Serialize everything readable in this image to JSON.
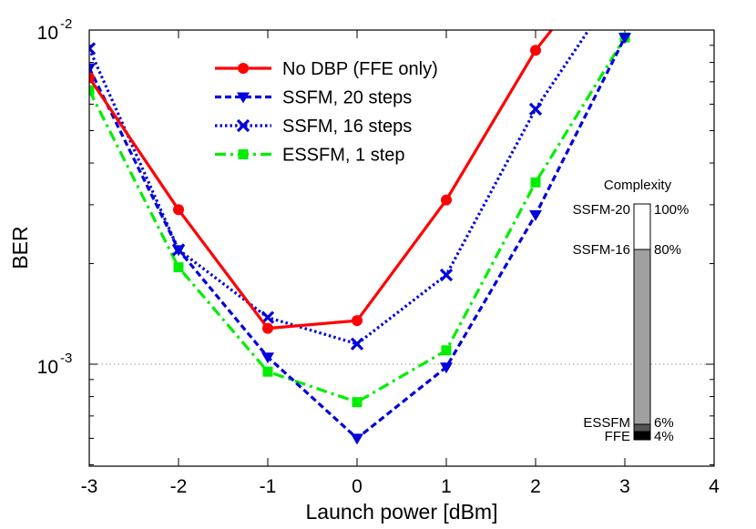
{
  "chart_data": {
    "type": "line",
    "xlabel": "Launch power [dBm]",
    "ylabel": "BER",
    "xlim": [
      -3,
      4
    ],
    "ylim": [
      0.0005,
      0.01
    ],
    "yscale": "log",
    "x_ticks": [
      "-3",
      "-2",
      "-1",
      "0",
      "1",
      "2",
      "3",
      "4"
    ],
    "y_ticks": [
      {
        "value": 0.01,
        "base": "10",
        "exp": "-2"
      },
      {
        "value": 0.001,
        "base": "10",
        "exp": "-3"
      }
    ],
    "reference_line": {
      "y": 0.001,
      "style": "dotted",
      "color": "#999999"
    },
    "legend_position": "top-center",
    "series": [
      {
        "name": "No DBP (FFE only)",
        "color": "#ff0000",
        "marker": "circle",
        "dash": "solid",
        "x": [
          -3,
          -2,
          -1,
          0,
          1,
          2,
          3
        ],
        "y": [
          0.0072,
          0.0029,
          0.00128,
          0.00135,
          0.0031,
          0.0087,
          0.019
        ]
      },
      {
        "name": "SSFM, 20 steps",
        "color": "#0000dd",
        "marker": "triangle-down",
        "dash": "dashed",
        "x": [
          -3,
          -2,
          -1,
          0,
          1,
          2,
          3
        ],
        "y": [
          0.0077,
          0.0022,
          0.00105,
          0.0006,
          0.00098,
          0.0028,
          0.0095
        ]
      },
      {
        "name": "SSFM, 16 steps",
        "color": "#0000dd",
        "marker": "x",
        "dash": "dotted",
        "x": [
          -3,
          -2,
          -1,
          0,
          1,
          2,
          3
        ],
        "y": [
          0.0088,
          0.0022,
          0.00138,
          0.00115,
          0.00185,
          0.0058,
          0.0145
        ]
      },
      {
        "name": "ESSFM, 1 step",
        "color": "#00ee00",
        "marker": "square",
        "dash": "dash-dot",
        "x": [
          -3,
          -2,
          -1,
          0,
          1,
          2,
          3
        ],
        "y": [
          0.0066,
          0.00195,
          0.00095,
          0.00077,
          0.0011,
          0.0035,
          0.0095
        ]
      }
    ],
    "inset": {
      "title": "Complexity",
      "bar": [
        {
          "left": "FFE",
          "right": "4%",
          "value": 4,
          "color": "#000000"
        },
        {
          "left": "ESSFM",
          "right": "6%",
          "value": 6,
          "color": "#555555"
        },
        {
          "left": "SSFM-16",
          "right": "80%",
          "value": 80,
          "color": "#a0a0a0"
        },
        {
          "left": "SSFM-20",
          "right": "100%",
          "value": 100,
          "color": "#ffffff"
        }
      ]
    }
  }
}
